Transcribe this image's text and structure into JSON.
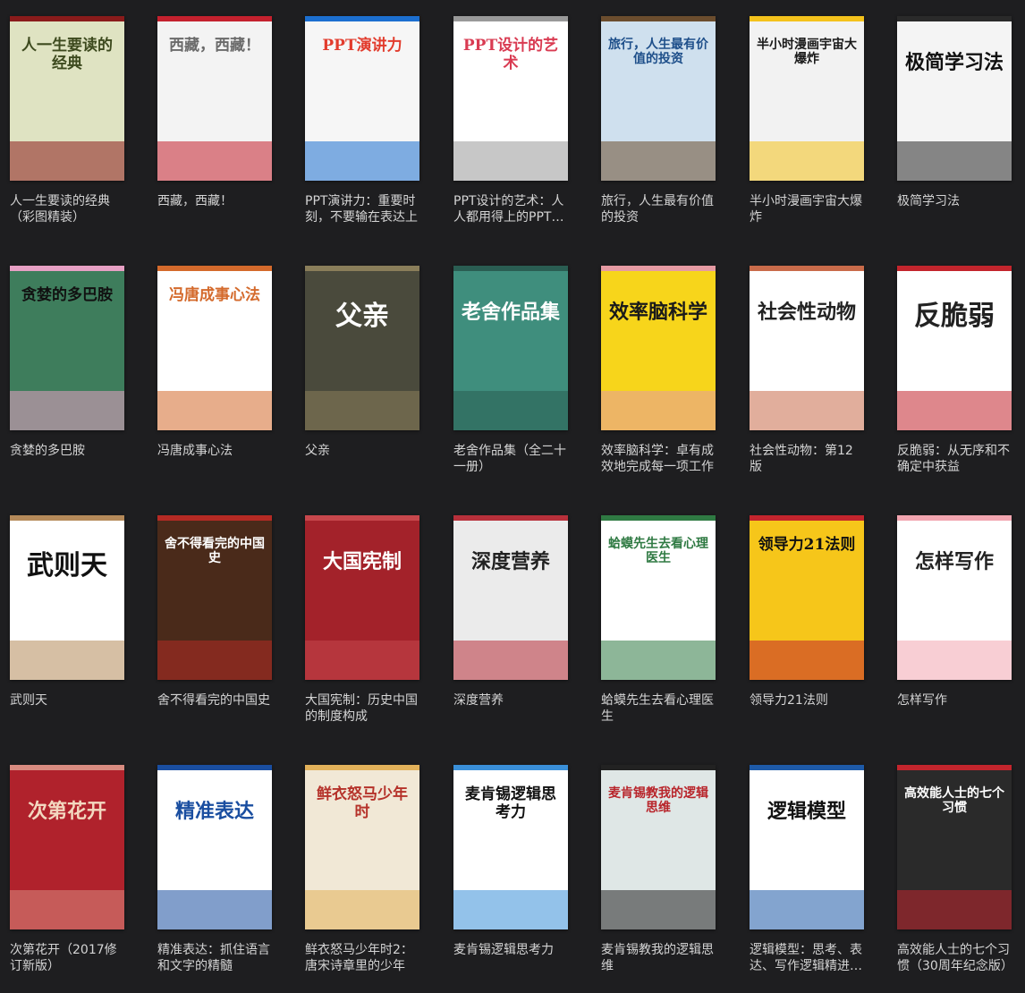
{
  "books": [
    {
      "title": "人一生要读的经典（彩图精装）",
      "cover": {
        "bg": "#dfe3c2",
        "fg": "#3d4a1e",
        "accent": "#8a1b1b",
        "text": "人一生要读的经典"
      }
    },
    {
      "title": "西藏，西藏！",
      "cover": {
        "bg": "#f3f3f3",
        "fg": "#6a6a6a",
        "accent": "#c4212e",
        "text": "西藏，西藏！"
      }
    },
    {
      "title": "PPT演讲力：重要时刻，不要输在表达上",
      "cover": {
        "bg": "#f6f6f6",
        "fg": "#e23c2d",
        "accent": "#1c6fd0",
        "text": "PPT演讲力"
      }
    },
    {
      "title": "PPT设计的艺术：人人都用得上的PPT设计书",
      "cover": {
        "bg": "#ffffff",
        "fg": "#d93b52",
        "accent": "#999999",
        "text": "PPT设计的艺术"
      }
    },
    {
      "title": "旅行，人生最有价值的投资",
      "cover": {
        "bg": "#cfe0ee",
        "fg": "#1e4f8a",
        "accent": "#6b4d2e",
        "text": "旅行，人生最有价值的投资"
      }
    },
    {
      "title": "半小时漫画宇宙大爆炸",
      "cover": {
        "bg": "#f2f2f2",
        "fg": "#1a1a1a",
        "accent": "#f4c21c",
        "text": "半小时漫画宇宙大爆炸"
      }
    },
    {
      "title": "极简学习法",
      "cover": {
        "bg": "#f4f4f4",
        "fg": "#111111",
        "accent": "#2a2a2a",
        "text": "极简学习法"
      }
    },
    {
      "title": "贪婪的多巴胺",
      "cover": {
        "bg": "#3e7d5c",
        "fg": "#111111",
        "accent": "#e7a0c4",
        "text": "贪婪的多巴胺"
      }
    },
    {
      "title": "冯唐成事心法",
      "cover": {
        "bg": "#ffffff",
        "fg": "#d46a2c",
        "accent": "#d46a2c",
        "text": "冯唐成事心法"
      }
    },
    {
      "title": "父亲",
      "cover": {
        "bg": "#4a4a3c",
        "fg": "#ffffff",
        "accent": "#8a7e5a",
        "text": "父亲"
      }
    },
    {
      "title": "老舍作品集（全二十一册）",
      "cover": {
        "bg": "#3f8e7d",
        "fg": "#ffffff",
        "accent": "#2a5d52",
        "text": "老舍作品集"
      }
    },
    {
      "title": "效率脑科学：卓有成效地完成每一项工作",
      "cover": {
        "bg": "#f7d51b",
        "fg": "#1a1a1a",
        "accent": "#e59aa3",
        "text": "效率脑科学"
      }
    },
    {
      "title": "社会性动物：第12版",
      "cover": {
        "bg": "#ffffff",
        "fg": "#222222",
        "accent": "#c96b4a",
        "text": "社会性动物"
      }
    },
    {
      "title": "反脆弱：从无序和不确定中获益",
      "cover": {
        "bg": "#ffffff",
        "fg": "#222222",
        "accent": "#c3252d",
        "text": "反脆弱"
      }
    },
    {
      "title": "武则天",
      "cover": {
        "bg": "#ffffff",
        "fg": "#111111",
        "accent": "#b58a5a",
        "text": "武则天"
      }
    },
    {
      "title": "舍不得看完的中国史",
      "cover": {
        "bg": "#4a2a1a",
        "fg": "#ffffff",
        "accent": "#b52a24",
        "text": "舍不得看完的中国史"
      }
    },
    {
      "title": "大国宪制：历史中国的制度构成",
      "cover": {
        "bg": "#a3222a",
        "fg": "#ffffff",
        "accent": "#c7474c",
        "text": "大国宪制"
      }
    },
    {
      "title": "深度营养",
      "cover": {
        "bg": "#ebebeb",
        "fg": "#222222",
        "accent": "#b8303b",
        "text": "深度营养"
      }
    },
    {
      "title": "蛤蟆先生去看心理医生",
      "cover": {
        "bg": "#ffffff",
        "fg": "#2f7a43",
        "accent": "#2f7a43",
        "text": "蛤蟆先生去看心理医生"
      }
    },
    {
      "title": "领导力21法则",
      "cover": {
        "bg": "#f6c61a",
        "fg": "#111111",
        "accent": "#c3252d",
        "text": "领导力21法则"
      }
    },
    {
      "title": "怎样写作",
      "cover": {
        "bg": "#ffffff",
        "fg": "#222222",
        "accent": "#f2a5b0",
        "text": "怎样写作"
      }
    },
    {
      "title": "次第花开（2017修订新版）",
      "cover": {
        "bg": "#b0222c",
        "fg": "#f3d8c0",
        "accent": "#d88b80",
        "text": "次第花开"
      }
    },
    {
      "title": "精准表达：抓住语言和文字的精髓",
      "cover": {
        "bg": "#ffffff",
        "fg": "#1a4ea0",
        "accent": "#1a4ea0",
        "text": "精准表达"
      }
    },
    {
      "title": "鲜衣怒马少年时2：唐宋诗章里的少年",
      "cover": {
        "bg": "#f1e8d6",
        "fg": "#b5322a",
        "accent": "#e2b15a",
        "text": "鲜衣怒马少年时"
      }
    },
    {
      "title": "麦肯锡逻辑思考力",
      "cover": {
        "bg": "#ffffff",
        "fg": "#111111",
        "accent": "#3a8fd8",
        "text": "麦肯锡逻辑思考力"
      }
    },
    {
      "title": "麦肯锡教我的逻辑思维",
      "cover": {
        "bg": "#dfe7e6",
        "fg": "#b8242a",
        "accent": "#222222",
        "text": "麦肯锡教我的逻辑思维"
      }
    },
    {
      "title": "逻辑模型：思考、表达、写作逻辑精进图鉴",
      "cover": {
        "bg": "#ffffff",
        "fg": "#111111",
        "accent": "#1e5aa8",
        "text": "逻辑模型"
      }
    },
    {
      "title": "高效能人士的七个习惯（30周年纪念版）",
      "cover": {
        "bg": "#2a2a2a",
        "fg": "#ffffff",
        "accent": "#c3252d",
        "text": "高效能人士的七个习惯"
      }
    }
  ]
}
